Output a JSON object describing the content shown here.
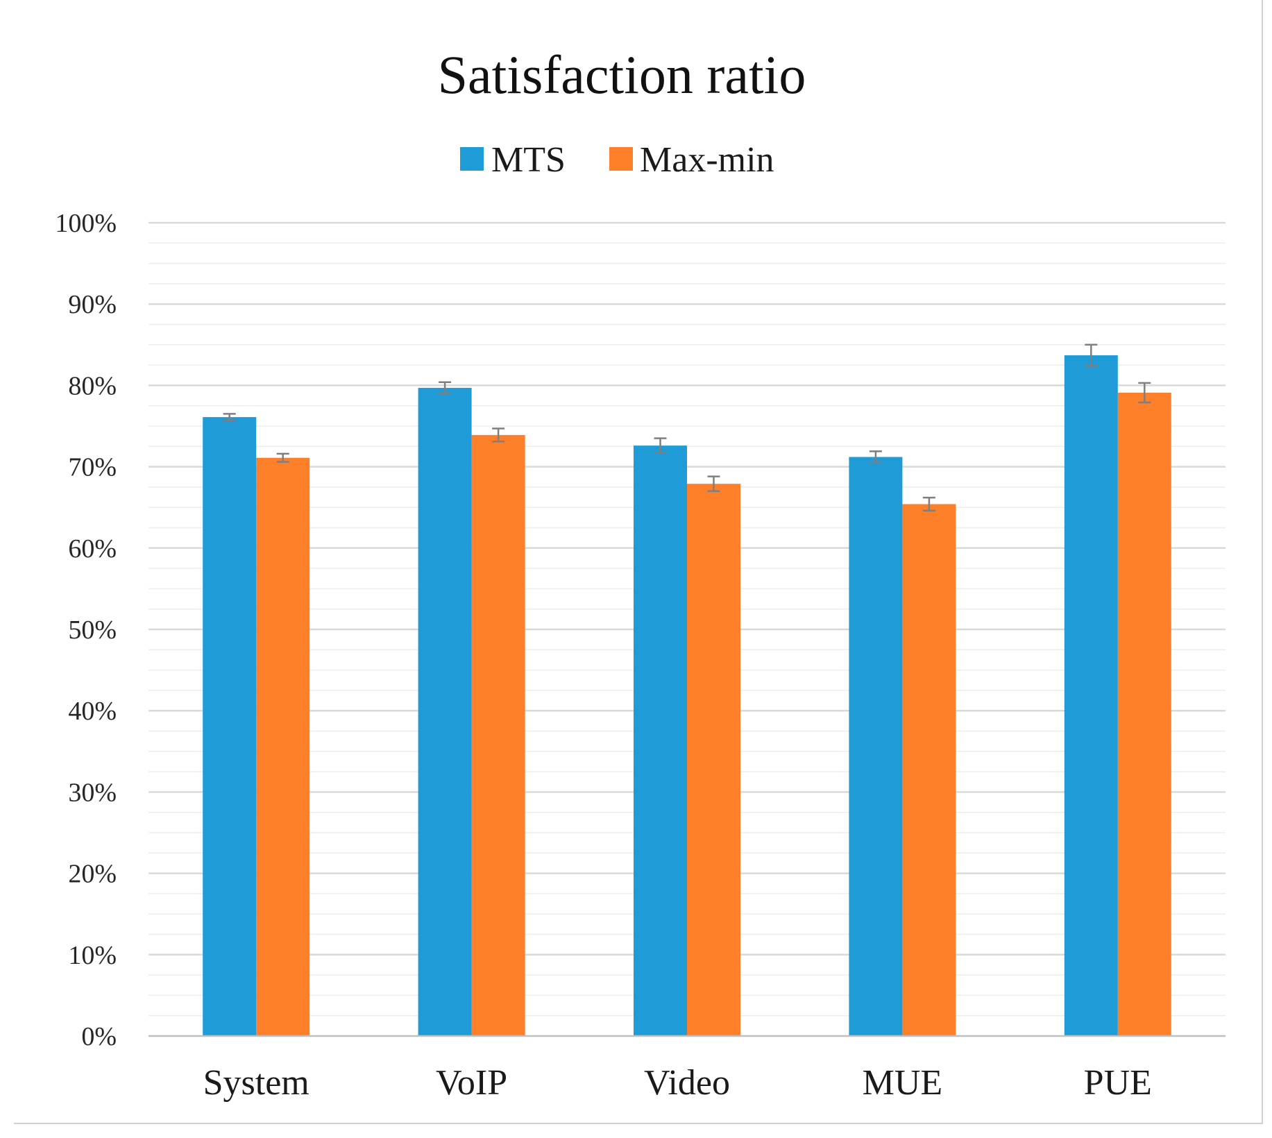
{
  "chart_data": {
    "type": "bar",
    "title": "Satisfaction ratio",
    "xlabel": "",
    "ylabel": "",
    "categories": [
      "System",
      "VoIP",
      "Video",
      "MUE",
      "PUE"
    ],
    "series": [
      {
        "name": "MTS",
        "color": "#1f9bd7",
        "values": [
          76.1,
          79.7,
          72.6,
          71.2,
          83.7
        ],
        "errors": [
          0.4,
          0.7,
          0.9,
          0.7,
          1.3
        ]
      },
      {
        "name": "Max-min",
        "color": "#fd7f29",
        "values": [
          71.1,
          73.9,
          67.9,
          65.4,
          79.1
        ],
        "errors": [
          0.5,
          0.8,
          0.9,
          0.8,
          1.2
        ]
      }
    ],
    "ylim": [
      0,
      100
    ],
    "y_ticks": [
      "0%",
      "10%",
      "20%",
      "30%",
      "40%",
      "50%",
      "60%",
      "70%",
      "80%",
      "90%",
      "100%"
    ],
    "legend_position": "top-center",
    "grid": true,
    "colors": {
      "major_grid": "#d9d9d9",
      "minor_grid": "#ededed",
      "error_bar": "#7f7f7f"
    }
  }
}
